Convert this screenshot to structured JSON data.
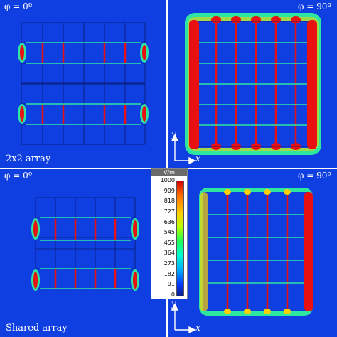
{
  "panels": [
    {
      "id": "tl",
      "angle_label": "φ = 0º",
      "caption": "2x2 array"
    },
    {
      "id": "tr",
      "angle_label": "φ = 90º",
      "axis_y": "y",
      "axis_x": "x"
    },
    {
      "id": "bl",
      "angle_label": "φ = 0º",
      "caption": "Shared array"
    },
    {
      "id": "br",
      "angle_label": "φ = 90º",
      "axis_y": "y",
      "axis_x": "x"
    }
  ],
  "colorbar": {
    "unit": "V/m",
    "ticks": [
      "1000",
      "909",
      "818",
      "727",
      "636",
      "545",
      "455",
      "364",
      "273",
      "182",
      "91",
      "0"
    ]
  },
  "colors": {
    "background": "#0f3fe0",
    "hot": "#e81010",
    "warm": "#ffd000",
    "cool": "#2fe6a0"
  }
}
